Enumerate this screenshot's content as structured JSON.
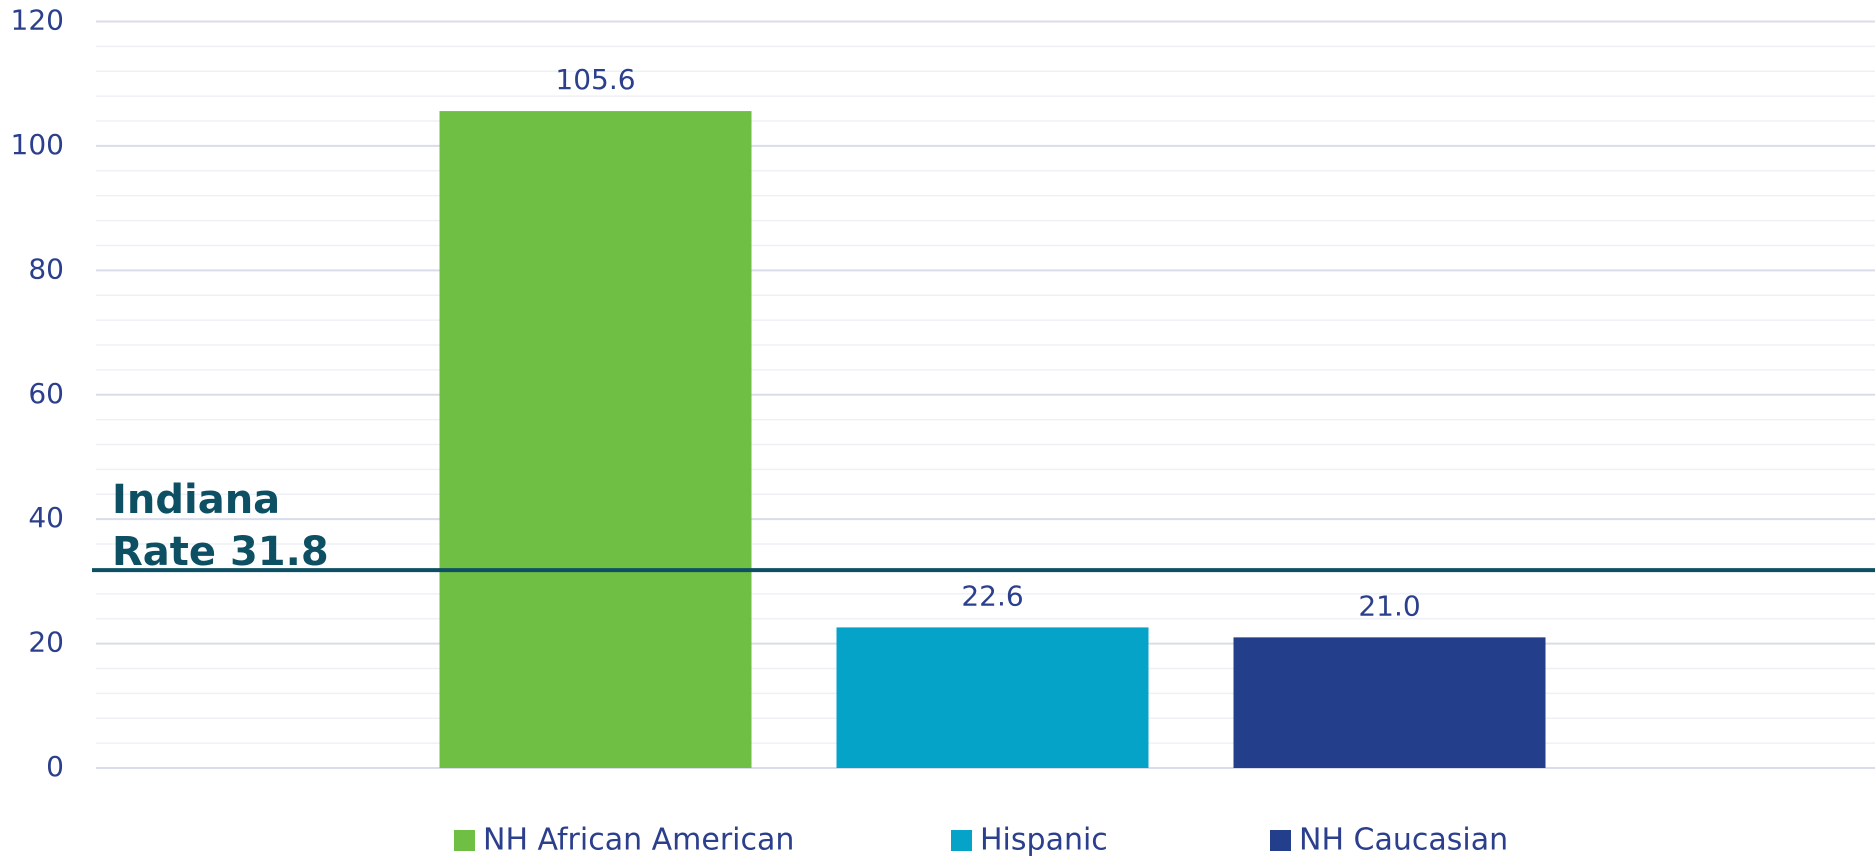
{
  "chart_data": {
    "type": "bar",
    "categories": [
      "NH African American",
      "Hispanic",
      "NH Caucasian"
    ],
    "values": [
      105.6,
      22.6,
      21.0
    ],
    "value_labels": [
      "105.6",
      "22.6",
      "21.0"
    ],
    "colors": [
      "#70bf45",
      "#06a3c9",
      "#233f8c"
    ],
    "ylim": [
      0,
      120
    ],
    "yticks": [
      0,
      20,
      40,
      60,
      80,
      100,
      120
    ],
    "minor_yticks": [
      4,
      8,
      12,
      16,
      24,
      28,
      32,
      36,
      44,
      48,
      52,
      56,
      64,
      68,
      72,
      76,
      84,
      88,
      92,
      96,
      104,
      108,
      112,
      116
    ],
    "grid": true,
    "legend": "bottom",
    "reference_line": {
      "value": 31.8,
      "label": [
        "Indiana",
        "Rate 31.8"
      ],
      "color": "#0d4f63"
    }
  }
}
